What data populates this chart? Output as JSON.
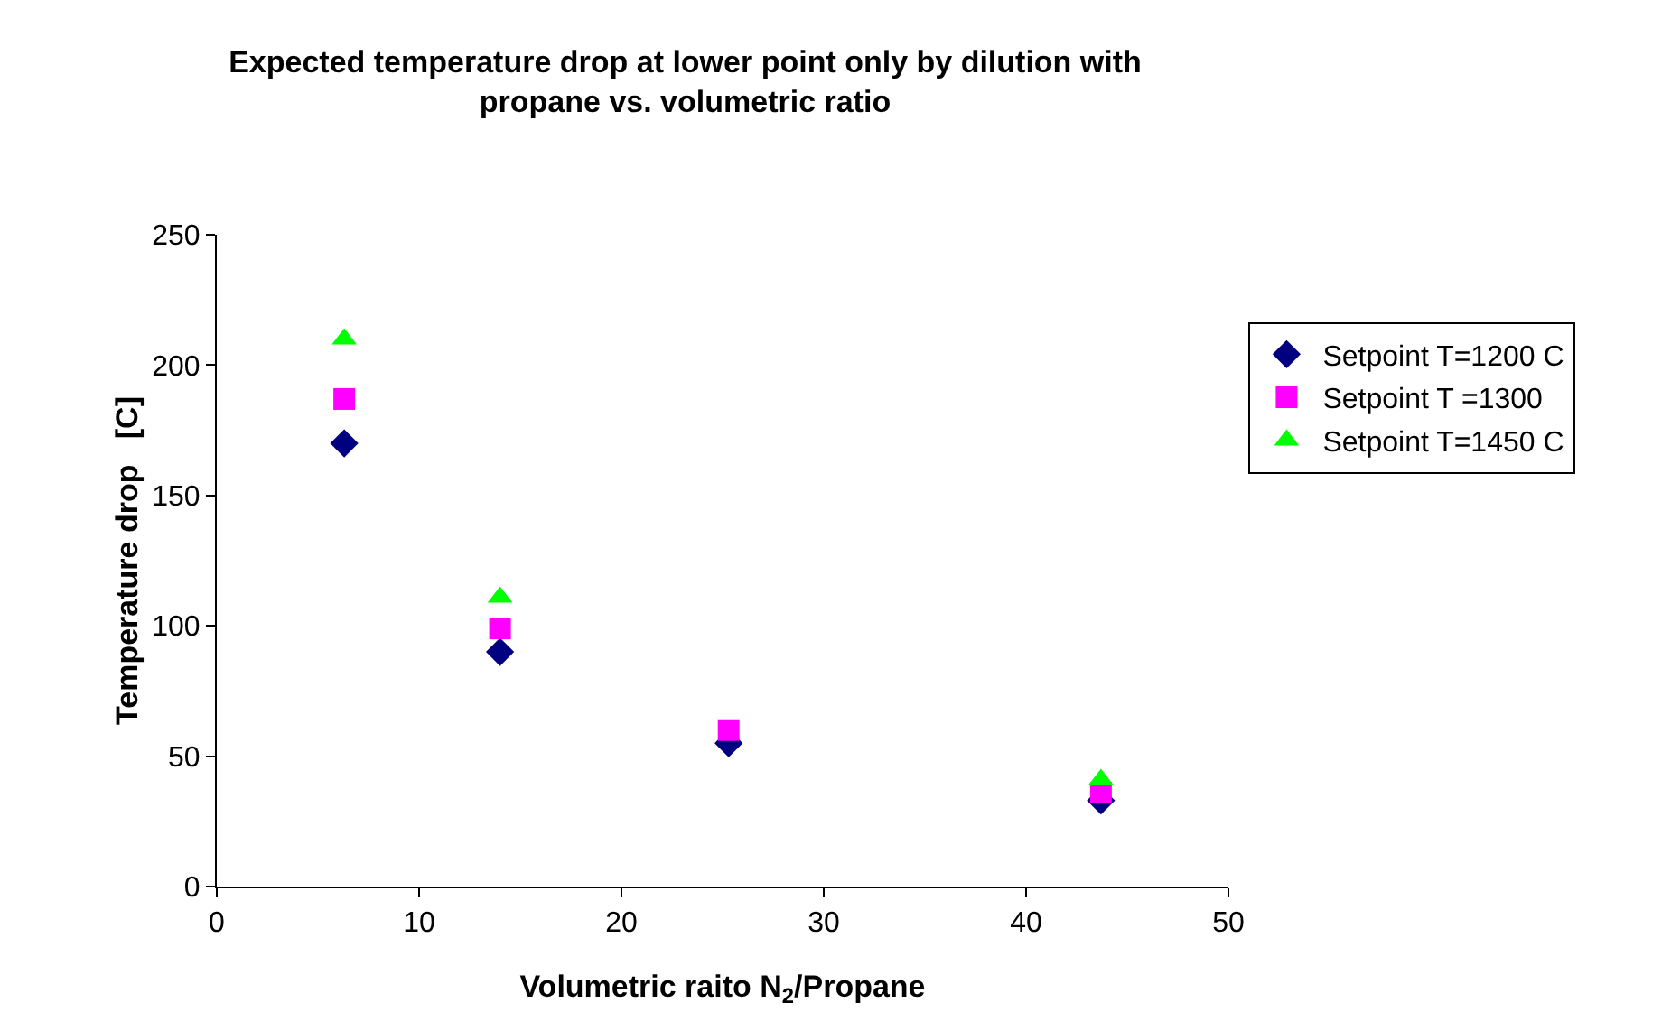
{
  "chart_data": {
    "type": "scatter",
    "title": "Expected temperature drop at lower point only by dilution with propane vs. volumetric ratio",
    "xlabel": "Volumetric raito N$_{2}$/Propane",
    "ylabel": "Temperature drop   [C]",
    "x": [
      6.3,
      14.0,
      25.3,
      43.7
    ],
    "series": [
      {
        "name": "Setpoint T=1200 C",
        "color": "#000080",
        "marker": "diamond",
        "values": [
          170,
          90,
          55,
          33
        ]
      },
      {
        "name": "Setpoint T =1300",
        "color": "#ff00ff",
        "marker": "square",
        "values": [
          187,
          99,
          60,
          36
        ]
      },
      {
        "name": "Setpoint T=1450 C",
        "color": "#00ff00",
        "marker": "triangle",
        "values": [
          210,
          111,
          null,
          41
        ]
      }
    ],
    "xlim": [
      0,
      50
    ],
    "xticks": [
      0,
      10,
      20,
      30,
      40,
      50
    ],
    "ylim": [
      0,
      250
    ],
    "yticks": [
      0,
      50,
      100,
      150,
      200,
      250
    ],
    "grid": false,
    "legend": "right"
  }
}
